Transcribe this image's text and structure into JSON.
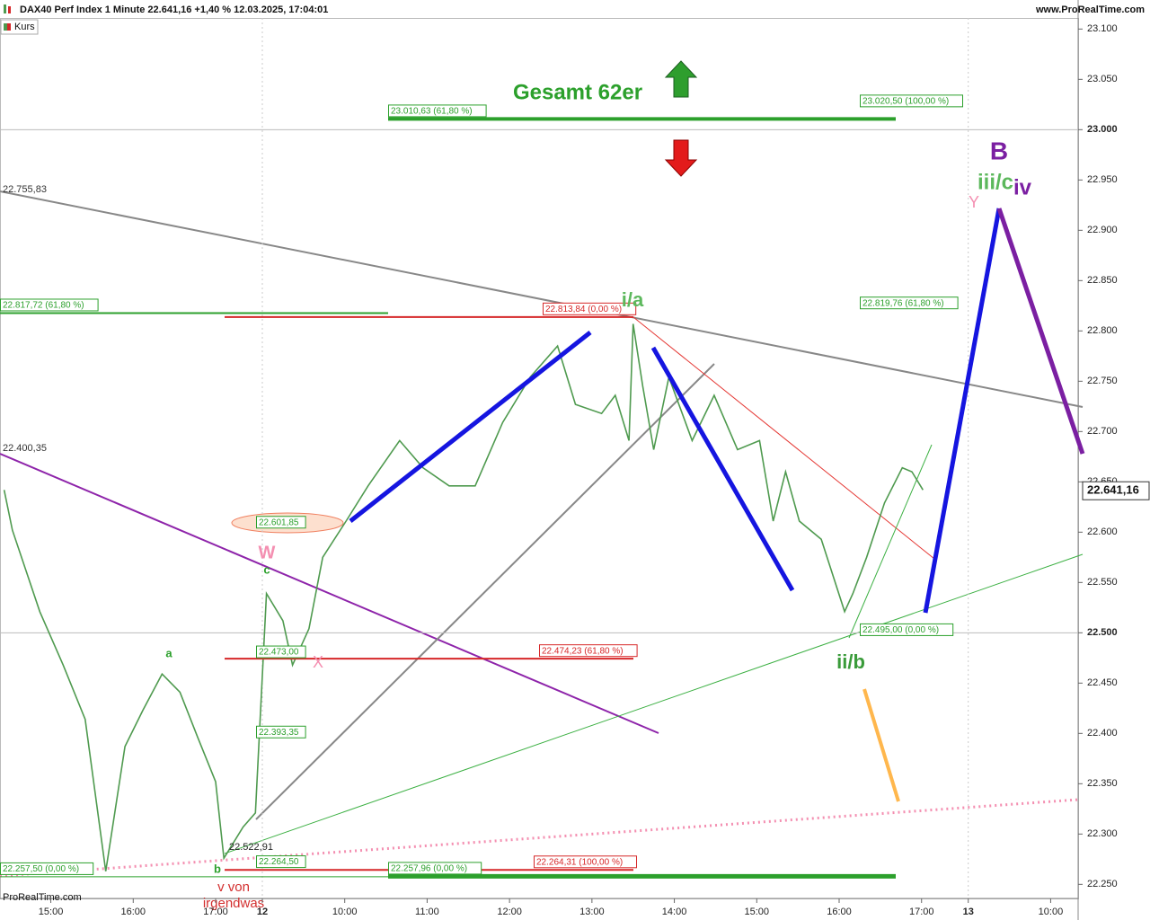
{
  "chart_data": {
    "type": "line",
    "title": "DAX40 Perf Index 1 Minute 22.641,16 +1,40 % 12.03.2025, 17:04:01",
    "source": "www.ProRealTime.com",
    "watermark": "ProRealTime.com",
    "series": [
      {
        "name": "Kurs",
        "color": "#4f9a4f",
        "x": [
          -34,
          -28,
          -8,
          9,
          25,
          40,
          54,
          67,
          81,
          94,
          107,
          120,
          126,
          140,
          149,
          157,
          169,
          176,
          188,
          198,
          215,
          231,
          254,
          271,
          290,
          309,
          329,
          349,
          369,
          382,
          401,
          411,
          421,
          424,
          431,
          439,
          450,
          467,
          483,
          500,
          516,
          526,
          535,
          545,
          561,
          578,
          584,
          594,
          607,
          620,
          627,
          635
        ],
        "values": [
          22642,
          22602,
          22521,
          22468,
          22414,
          22263,
          22387,
          22423,
          22459,
          22441,
          22396,
          22352,
          22276,
          22307,
          22321,
          22539,
          22512,
          22468,
          22504,
          22575,
          22611,
          22646,
          22691,
          22664,
          22646,
          22646,
          22709,
          22754,
          22785,
          22727,
          22718,
          22736,
          22691,
          22807,
          22745,
          22682,
          22754,
          22691,
          22736,
          22682,
          22691,
          22611,
          22660,
          22611,
          22593,
          22521,
          22539,
          22575,
          22629,
          22664,
          22660,
          22642
        ]
      }
    ],
    "last_price": {
      "value": 22641.16,
      "label": "22.641,16"
    },
    "ylim": [
      22236,
      23111
    ],
    "yticks": [
      {
        "value": 23100,
        "label": "23.100"
      },
      {
        "value": 23050,
        "label": "23.050"
      },
      {
        "value": 23000,
        "label": "23.000"
      },
      {
        "value": 22950,
        "label": "22.950"
      },
      {
        "value": 22900,
        "label": "22.900"
      },
      {
        "value": 22850,
        "label": "22.850"
      },
      {
        "value": 22800,
        "label": "22.800"
      },
      {
        "value": 22750,
        "label": "22.750"
      },
      {
        "value": 22700,
        "label": "22.700"
      },
      {
        "value": 22650,
        "label": "22.650"
      },
      {
        "value": 22600,
        "label": "22.600"
      },
      {
        "value": 22550,
        "label": "22.550"
      },
      {
        "value": 22500,
        "label": "22.500"
      },
      {
        "value": 22450,
        "label": "22.450"
      },
      {
        "value": 22400,
        "label": "22.400"
      },
      {
        "value": 22350,
        "label": "22.350"
      },
      {
        "value": 22300,
        "label": "22.300"
      },
      {
        "value": 22250,
        "label": "22.250"
      }
    ],
    "xlim": [
      -37,
      748
    ],
    "xticks": [
      {
        "value": 0,
        "label": "15:00"
      },
      {
        "value": 60,
        "label": "16:00"
      },
      {
        "value": 120,
        "label": "17:00"
      },
      {
        "value": 154,
        "label": "12"
      },
      {
        "value": 214,
        "label": "10:00"
      },
      {
        "value": 274,
        "label": "11:00"
      },
      {
        "value": 334,
        "label": "12:00"
      },
      {
        "value": 394,
        "label": "13:00"
      },
      {
        "value": 454,
        "label": "14:00"
      },
      {
        "value": 514,
        "label": "15:00"
      },
      {
        "value": 574,
        "label": "16:00"
      },
      {
        "value": 634,
        "label": "17:00"
      },
      {
        "value": 668,
        "label": "13"
      },
      {
        "value": 728,
        "label": "10:00"
      }
    ],
    "levels": [
      {
        "value": 23010.63,
        "label": "23.010,63 (61,80 %)",
        "color": "#2ca02c"
      },
      {
        "value": 23020.5,
        "label": "23.020,50 (100,00 %)",
        "color": "#2ca02c"
      },
      {
        "value": 22817.72,
        "label": "22.817,72 (61,80 %)",
        "color": "#2ca02c"
      },
      {
        "value": 22813.84,
        "label": "22.813,84 (0,00 %)",
        "color": "#d62728"
      },
      {
        "value": 22819.76,
        "label": "22.819,76 (61,80 %)",
        "color": "#2ca02c"
      },
      {
        "value": 22474.23,
        "label": "22.474,23 (61,80 %)",
        "color": "#d62728"
      },
      {
        "value": 22495.0,
        "label": "22.495,00 (0,00 %)",
        "color": "#2ca02c"
      },
      {
        "value": 22601.85,
        "label": "22.601,85",
        "color": "#2ca02c"
      },
      {
        "value": 22473.0,
        "label": "22.473,00",
        "color": "#2ca02c"
      },
      {
        "value": 22393.35,
        "label": "22.393,35",
        "color": "#2ca02c"
      },
      {
        "value": 22264.5,
        "label": "22.264,50",
        "color": "#2ca02c"
      },
      {
        "value": 22257.5,
        "label": "22.257,50 (0,00 %)",
        "color": "#2ca02c"
      },
      {
        "value": 22257.96,
        "label": "22.257,96 (0,00 %)",
        "color": "#2ca02c"
      },
      {
        "value": 22264.31,
        "label": "22.264,31 (100,00 %)",
        "color": "#d62728"
      }
    ],
    "annotations": [
      "Gesamt 62er",
      "i/a",
      "ii/b",
      "iii/c",
      "iv",
      "B",
      "Y",
      "W",
      "X",
      "c",
      "a",
      "b",
      "v von",
      "irgendwas",
      "22.755,83",
      "22.400,35",
      "22.522,91"
    ]
  }
}
